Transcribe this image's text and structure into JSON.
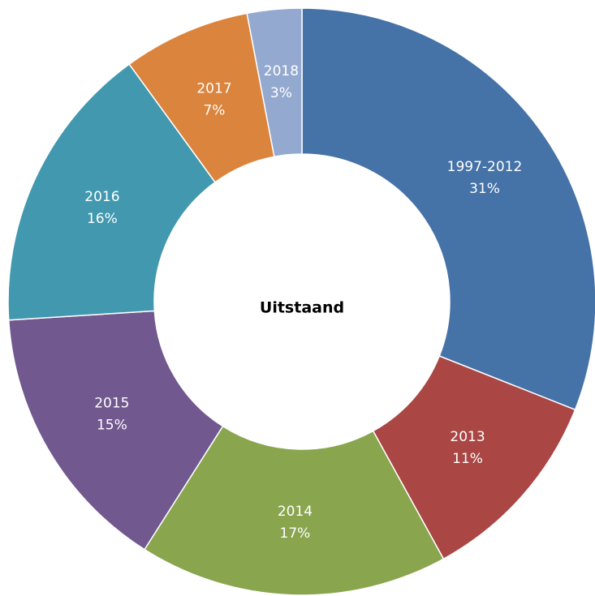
{
  "chart_data": {
    "type": "pie",
    "title": "Uitstaand",
    "categories": [
      "1997-2012",
      "2013",
      "2014",
      "2015",
      "2016",
      "2017",
      "2018"
    ],
    "values": [
      31,
      11,
      17,
      15,
      16,
      7,
      3
    ],
    "value_labels": [
      "31%",
      "11%",
      "17%",
      "15%",
      "16%",
      "7%",
      "3%"
    ],
    "colors": [
      "#4572a7",
      "#aa4643",
      "#89a54e",
      "#71588f",
      "#4198af",
      "#db843d",
      "#93a9cf"
    ]
  }
}
